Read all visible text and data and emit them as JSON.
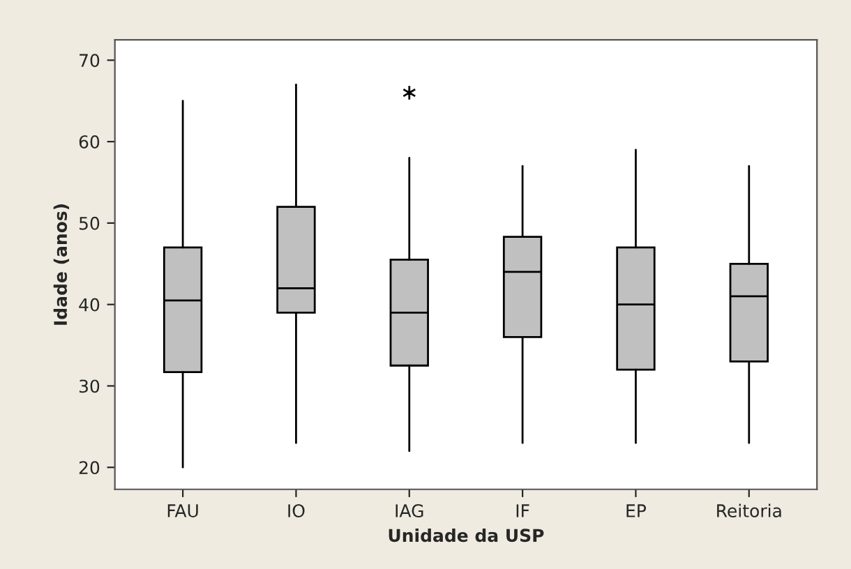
{
  "chart_data": {
    "type": "box",
    "xlabel": "Unidade da USP",
    "ylabel": "Idade (anos)",
    "categories": [
      "FAU",
      "IO",
      "IAG",
      "IF",
      "EP",
      "Reitoria"
    ],
    "boxes": [
      {
        "low": 20,
        "q1": 31.7,
        "median": 40.5,
        "q3": 47,
        "high": 65
      },
      {
        "low": 23,
        "q1": 39,
        "median": 42,
        "q3": 52,
        "high": 67
      },
      {
        "low": 22,
        "q1": 32.5,
        "median": 39,
        "q3": 45.5,
        "high": 58,
        "outliers": [
          66
        ]
      },
      {
        "low": 23,
        "q1": 36,
        "median": 44,
        "q3": 48.3,
        "high": 57
      },
      {
        "low": 23,
        "q1": 32,
        "median": 40,
        "q3": 47,
        "high": 59
      },
      {
        "low": 23,
        "q1": 33,
        "median": 41,
        "q3": 45,
        "high": 57
      }
    ],
    "color": "#c0c0c0",
    "ylim": [
      17.3,
      72.5
    ],
    "yticks": [
      20,
      30,
      40,
      50,
      60,
      70
    ],
    "grid": false
  }
}
